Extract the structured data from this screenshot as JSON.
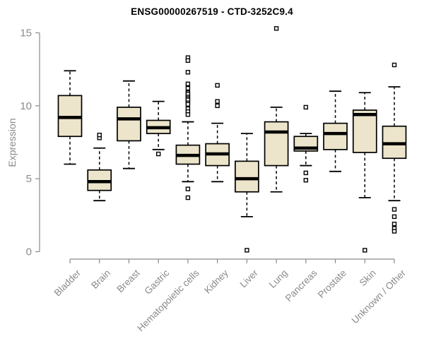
{
  "title": "ENSG00000267519 - CTD-3252C9.4",
  "colors": {
    "box_fill": "#ECE5CB",
    "box_stroke": "#000000",
    "median": "#000000",
    "axis": "#8a8a8a",
    "tick_label": "#8a8a8a",
    "title": "#000000",
    "outlier_fill": "#ffffff",
    "background": "#ffffff"
  },
  "chart_data": {
    "type": "boxplot",
    "title": "ENSG00000267519 - CTD-3252C9.4",
    "ylabel": "Expression",
    "xlabel": "",
    "ylim": [
      0,
      15
    ],
    "yticks": [
      0,
      5,
      10,
      15
    ],
    "grid": false,
    "legend": "none",
    "categories": [
      "Bladder",
      "Brain",
      "Breast",
      "Gastric",
      "Hematopoietic cells",
      "Kidney",
      "Liver",
      "Lung",
      "Pancreas",
      "Prostate",
      "Skin",
      "Unknown / Other"
    ],
    "series": [
      {
        "name": "Bladder",
        "whisker_low": 6.0,
        "q1": 7.9,
        "median": 9.2,
        "q3": 10.7,
        "whisker_high": 12.4,
        "outliers": []
      },
      {
        "name": "Brain",
        "whisker_low": 3.5,
        "q1": 4.2,
        "median": 4.8,
        "q3": 5.6,
        "whisker_high": 7.1,
        "outliers": [
          7.8,
          8.0
        ]
      },
      {
        "name": "Breast",
        "whisker_low": 5.7,
        "q1": 7.6,
        "median": 9.1,
        "q3": 9.9,
        "whisker_high": 11.7,
        "outliers": []
      },
      {
        "name": "Gastric",
        "whisker_low": 7.0,
        "q1": 8.1,
        "median": 8.5,
        "q3": 9.0,
        "whisker_high": 10.3,
        "outliers": [
          6.7
        ]
      },
      {
        "name": "Hematopoietic cells",
        "whisker_low": 4.8,
        "q1": 6.0,
        "median": 6.6,
        "q3": 7.3,
        "whisker_high": 8.9,
        "outliers": [
          13.3,
          13.1,
          12.3,
          11.5,
          11.2,
          10.9,
          10.8,
          10.6,
          10.5,
          10.4,
          10.2,
          10.1,
          9.8,
          9.6,
          9.4,
          4.3,
          3.7
        ]
      },
      {
        "name": "Kidney",
        "whisker_low": 4.8,
        "q1": 5.9,
        "median": 6.7,
        "q3": 7.4,
        "whisker_high": 8.8,
        "outliers": [
          11.4,
          10.3,
          10.0
        ]
      },
      {
        "name": "Liver",
        "whisker_low": 2.4,
        "q1": 4.1,
        "median": 5.0,
        "q3": 6.2,
        "whisker_high": 8.1,
        "outliers": [
          0.1
        ]
      },
      {
        "name": "Lung",
        "whisker_low": 4.1,
        "q1": 5.9,
        "median": 8.2,
        "q3": 8.9,
        "whisker_high": 9.9,
        "outliers": [
          15.3
        ]
      },
      {
        "name": "Pancreas",
        "whisker_low": 5.9,
        "q1": 6.9,
        "median": 7.1,
        "q3": 7.9,
        "whisker_high": 8.1,
        "outliers": [
          9.9,
          5.4,
          4.9
        ]
      },
      {
        "name": "Prostate",
        "whisker_low": 5.5,
        "q1": 7.0,
        "median": 8.1,
        "q3": 8.8,
        "whisker_high": 11.0,
        "outliers": []
      },
      {
        "name": "Skin",
        "whisker_low": 3.7,
        "q1": 6.8,
        "median": 9.4,
        "q3": 9.7,
        "whisker_high": 10.9,
        "outliers": [
          0.1
        ]
      },
      {
        "name": "Unknown / Other",
        "whisker_low": 3.5,
        "q1": 6.4,
        "median": 7.4,
        "q3": 8.6,
        "whisker_high": 11.3,
        "outliers": [
          12.8,
          2.9,
          2.4,
          1.9,
          1.6,
          1.4
        ]
      }
    ]
  }
}
